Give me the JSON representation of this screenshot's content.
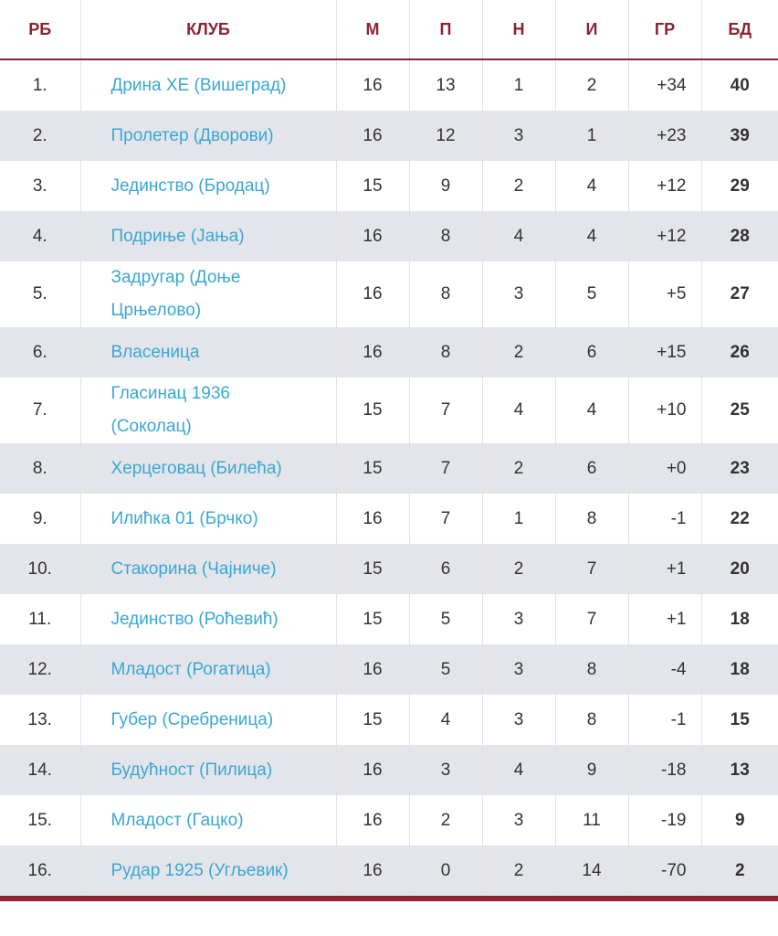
{
  "table": {
    "header": [
      "РБ",
      "КЛУБ",
      "М",
      "П",
      "Н",
      "И",
      "ГР",
      "БД"
    ],
    "rows": [
      [
        "1.",
        "Дрина ХЕ (Вишеград)",
        "16",
        "13",
        "1",
        "2",
        "+34",
        "40"
      ],
      [
        "2.",
        "Пролетер (Дворови)",
        "16",
        "12",
        "3",
        "1",
        "+23",
        "39"
      ],
      [
        "3.",
        "Јединство (Бродац)",
        "15",
        "9",
        "2",
        "4",
        "+12",
        "29"
      ],
      [
        "4.",
        "Подриње (Јања)",
        "16",
        "8",
        "4",
        "4",
        "+12",
        "28"
      ],
      [
        "5.",
        "Задругар (Доње Црњелово)",
        "16",
        "8",
        "3",
        "5",
        "+5",
        "27"
      ],
      [
        "6.",
        "Власеница",
        "16",
        "8",
        "2",
        "6",
        "+15",
        "26"
      ],
      [
        "7.",
        "Гласинац 1936 (Соколац)",
        "15",
        "7",
        "4",
        "4",
        "+10",
        "25"
      ],
      [
        "8.",
        "Херцеговац (Билећа)",
        "15",
        "7",
        "2",
        "6",
        "+0",
        "23"
      ],
      [
        "9.",
        "Илићка 01 (Брчко)",
        "16",
        "7",
        "1",
        "8",
        "-1",
        "22"
      ],
      [
        "10.",
        "Стакорина (Чајниче)",
        "15",
        "6",
        "2",
        "7",
        "+1",
        "20"
      ],
      [
        "11.",
        "Јединство (Роћевић)",
        "15",
        "5",
        "3",
        "7",
        "+1",
        "18"
      ],
      [
        "12.",
        "Младост (Рогатица)",
        "16",
        "5",
        "3",
        "8",
        "-4",
        "18"
      ],
      [
        "13.",
        "Губер (Сребреница)",
        "15",
        "4",
        "3",
        "8",
        "-1",
        "15"
      ],
      [
        "14.",
        "Будућност (Пилица)",
        "16",
        "3",
        "4",
        "9",
        "-18",
        "13"
      ],
      [
        "15.",
        "Младост (Гацко)",
        "16",
        "2",
        "3",
        "11",
        "-19",
        "9"
      ],
      [
        "16.",
        "Рудар 1925 (Угљевик)",
        "16",
        "0",
        "2",
        "14",
        "-70",
        "2"
      ]
    ]
  }
}
